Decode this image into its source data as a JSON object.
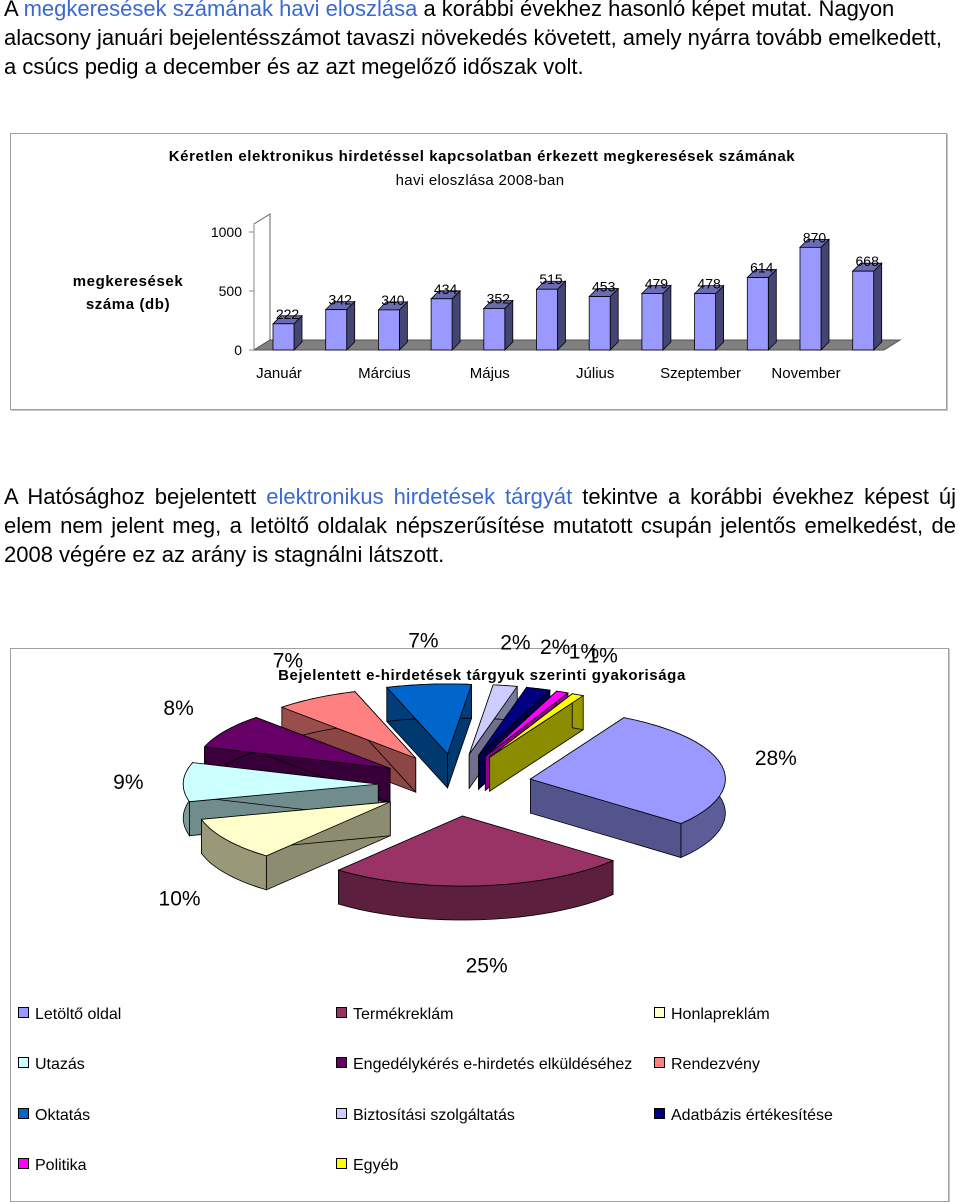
{
  "paragraph1": {
    "prefix": "A ",
    "link": "megkeresések számának havi eloszlása",
    "rest": " a korábbi évekhez hasonló képet mutat. Nagyon alacsony januári bejelentésszámot tavaszi növekedés követett, amely nyárra tovább emelkedett, a csúcs pedig a december és az azt megelőző időszak volt."
  },
  "paragraph2": {
    "prefix": "A Hatósághoz bejelentett ",
    "link": "elektronikus hirdetések tárgyát",
    "rest": " tekintve a korábbi évekhez képest új elem nem jelent meg, a letöltő oldalak népszerűsítése mutatott csupán jelentős emelkedést, de 2008 végére ez az arány is stagnálni látszott."
  },
  "chart_data": [
    {
      "type": "bar",
      "title_line1": "Kéretlen elektronikus hirdetéssel kapcsolatban érkezett megkeresések számának",
      "title_line2": "havi eloszlása 2008-ban",
      "ylabel_line1": "megkeresések",
      "ylabel_line2": "száma (db)",
      "ylim": [
        0,
        1000
      ],
      "yticks": [
        "0",
        "500",
        "1000"
      ],
      "categories": [
        "Január",
        "Február",
        "Március",
        "Április",
        "Május",
        "Június",
        "Július",
        "Augusztus",
        "Szeptember",
        "Október",
        "November",
        "December"
      ],
      "shown_category_labels": [
        "Január",
        "Március",
        "Május",
        "Július",
        "Szeptember",
        "November"
      ],
      "values": [
        222,
        342,
        340,
        434,
        352,
        515,
        453,
        479,
        478,
        614,
        870,
        668
      ],
      "bar_color": "#9999ff",
      "grid": false
    },
    {
      "type": "pie",
      "title": "Bejelentett e-hirdetések tárgyuk szerinti gyakorisága",
      "labels": [
        "Letöltő oldal",
        "Termékreklám",
        "Honlapreklám",
        "Utazás",
        "Engedélykérés e-hirdetés elküldéséhez",
        "Rendezvény",
        "Oktatás",
        "Biztosítási szolgáltatás",
        "Adatbázis értékesítése",
        "Politika",
        "Egyéb"
      ],
      "values": [
        28,
        25,
        10,
        9,
        8,
        7,
        7,
        2,
        2,
        1,
        1
      ],
      "value_labels": [
        "28%",
        "25%",
        "10%",
        "9%",
        "8%",
        "7%",
        "7%",
        "2%",
        "2%",
        "1%",
        "1%"
      ],
      "colors": [
        "#9999ff",
        "#993366",
        "#ffffcc",
        "#ccffff",
        "#660066",
        "#ff8080",
        "#0066cc",
        "#ccccff",
        "#000080",
        "#ff00ff",
        "#ffff00"
      ],
      "legend_position": "bottom"
    }
  ]
}
